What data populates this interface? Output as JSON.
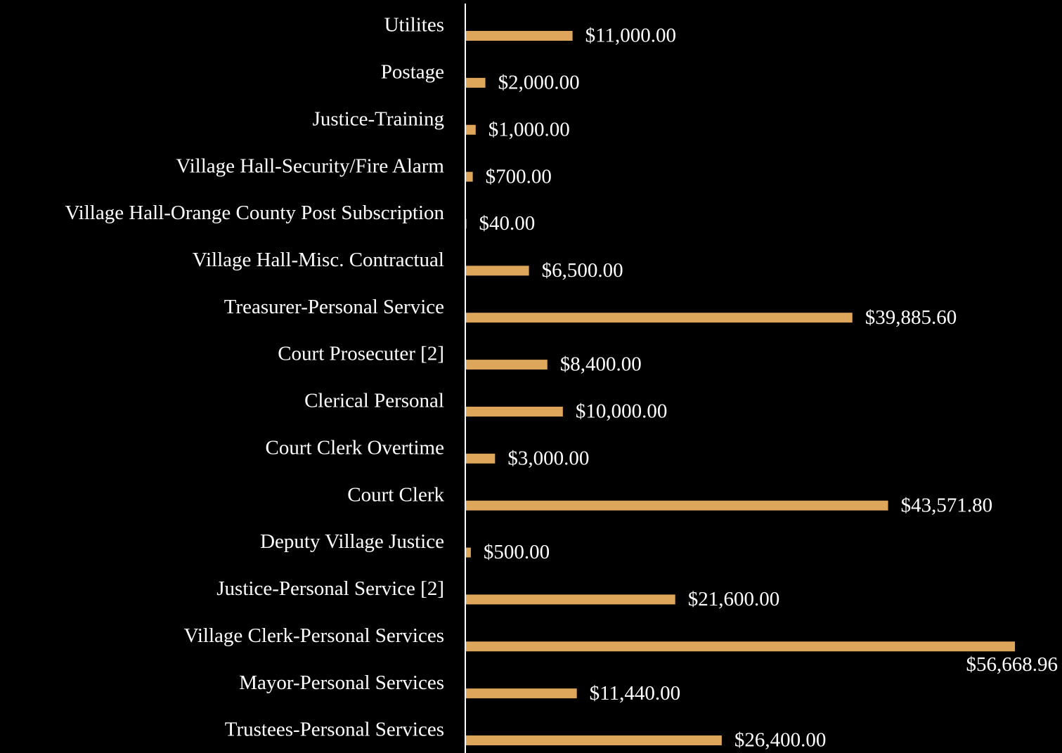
{
  "chart_data": {
    "type": "hbar",
    "categories": [
      "Utilites",
      "Postage",
      "Justice-Training",
      "Village Hall-Security/Fire Alarm",
      "Village Hall-Orange County Post Subscription",
      "Village Hall-Misc. Contractual",
      "Treasurer-Personal Service",
      "Court Prosecuter [2]",
      "Clerical Personal",
      "Court Clerk Overtime",
      "Court Clerk",
      "Deputy Village Justice",
      "Justice-Personal Service [2]",
      "Village Clerk-Personal Services",
      "Mayor-Personal Services",
      "Trustees-Personal Services"
    ],
    "values": [
      11000,
      2000,
      1000,
      700,
      40,
      6500,
      39885.6,
      8400,
      10000,
      3000,
      43571.8,
      500,
      21600,
      56668.96,
      11440,
      26400
    ],
    "value_labels": [
      "$11,000.00",
      "$2,000.00",
      "$1,000.00",
      "$700.00",
      "$40.00",
      "$6,500.00",
      "$39,885.60",
      "$8,400.00",
      "$10,000.00",
      "$3,000.00",
      "$43,571.80",
      "$500.00",
      "$21,600.00",
      "$56,668.96",
      "$11,440.00",
      "$26,400.00"
    ],
    "color": "#dea65a",
    "xlim": [
      0,
      60000
    ]
  }
}
